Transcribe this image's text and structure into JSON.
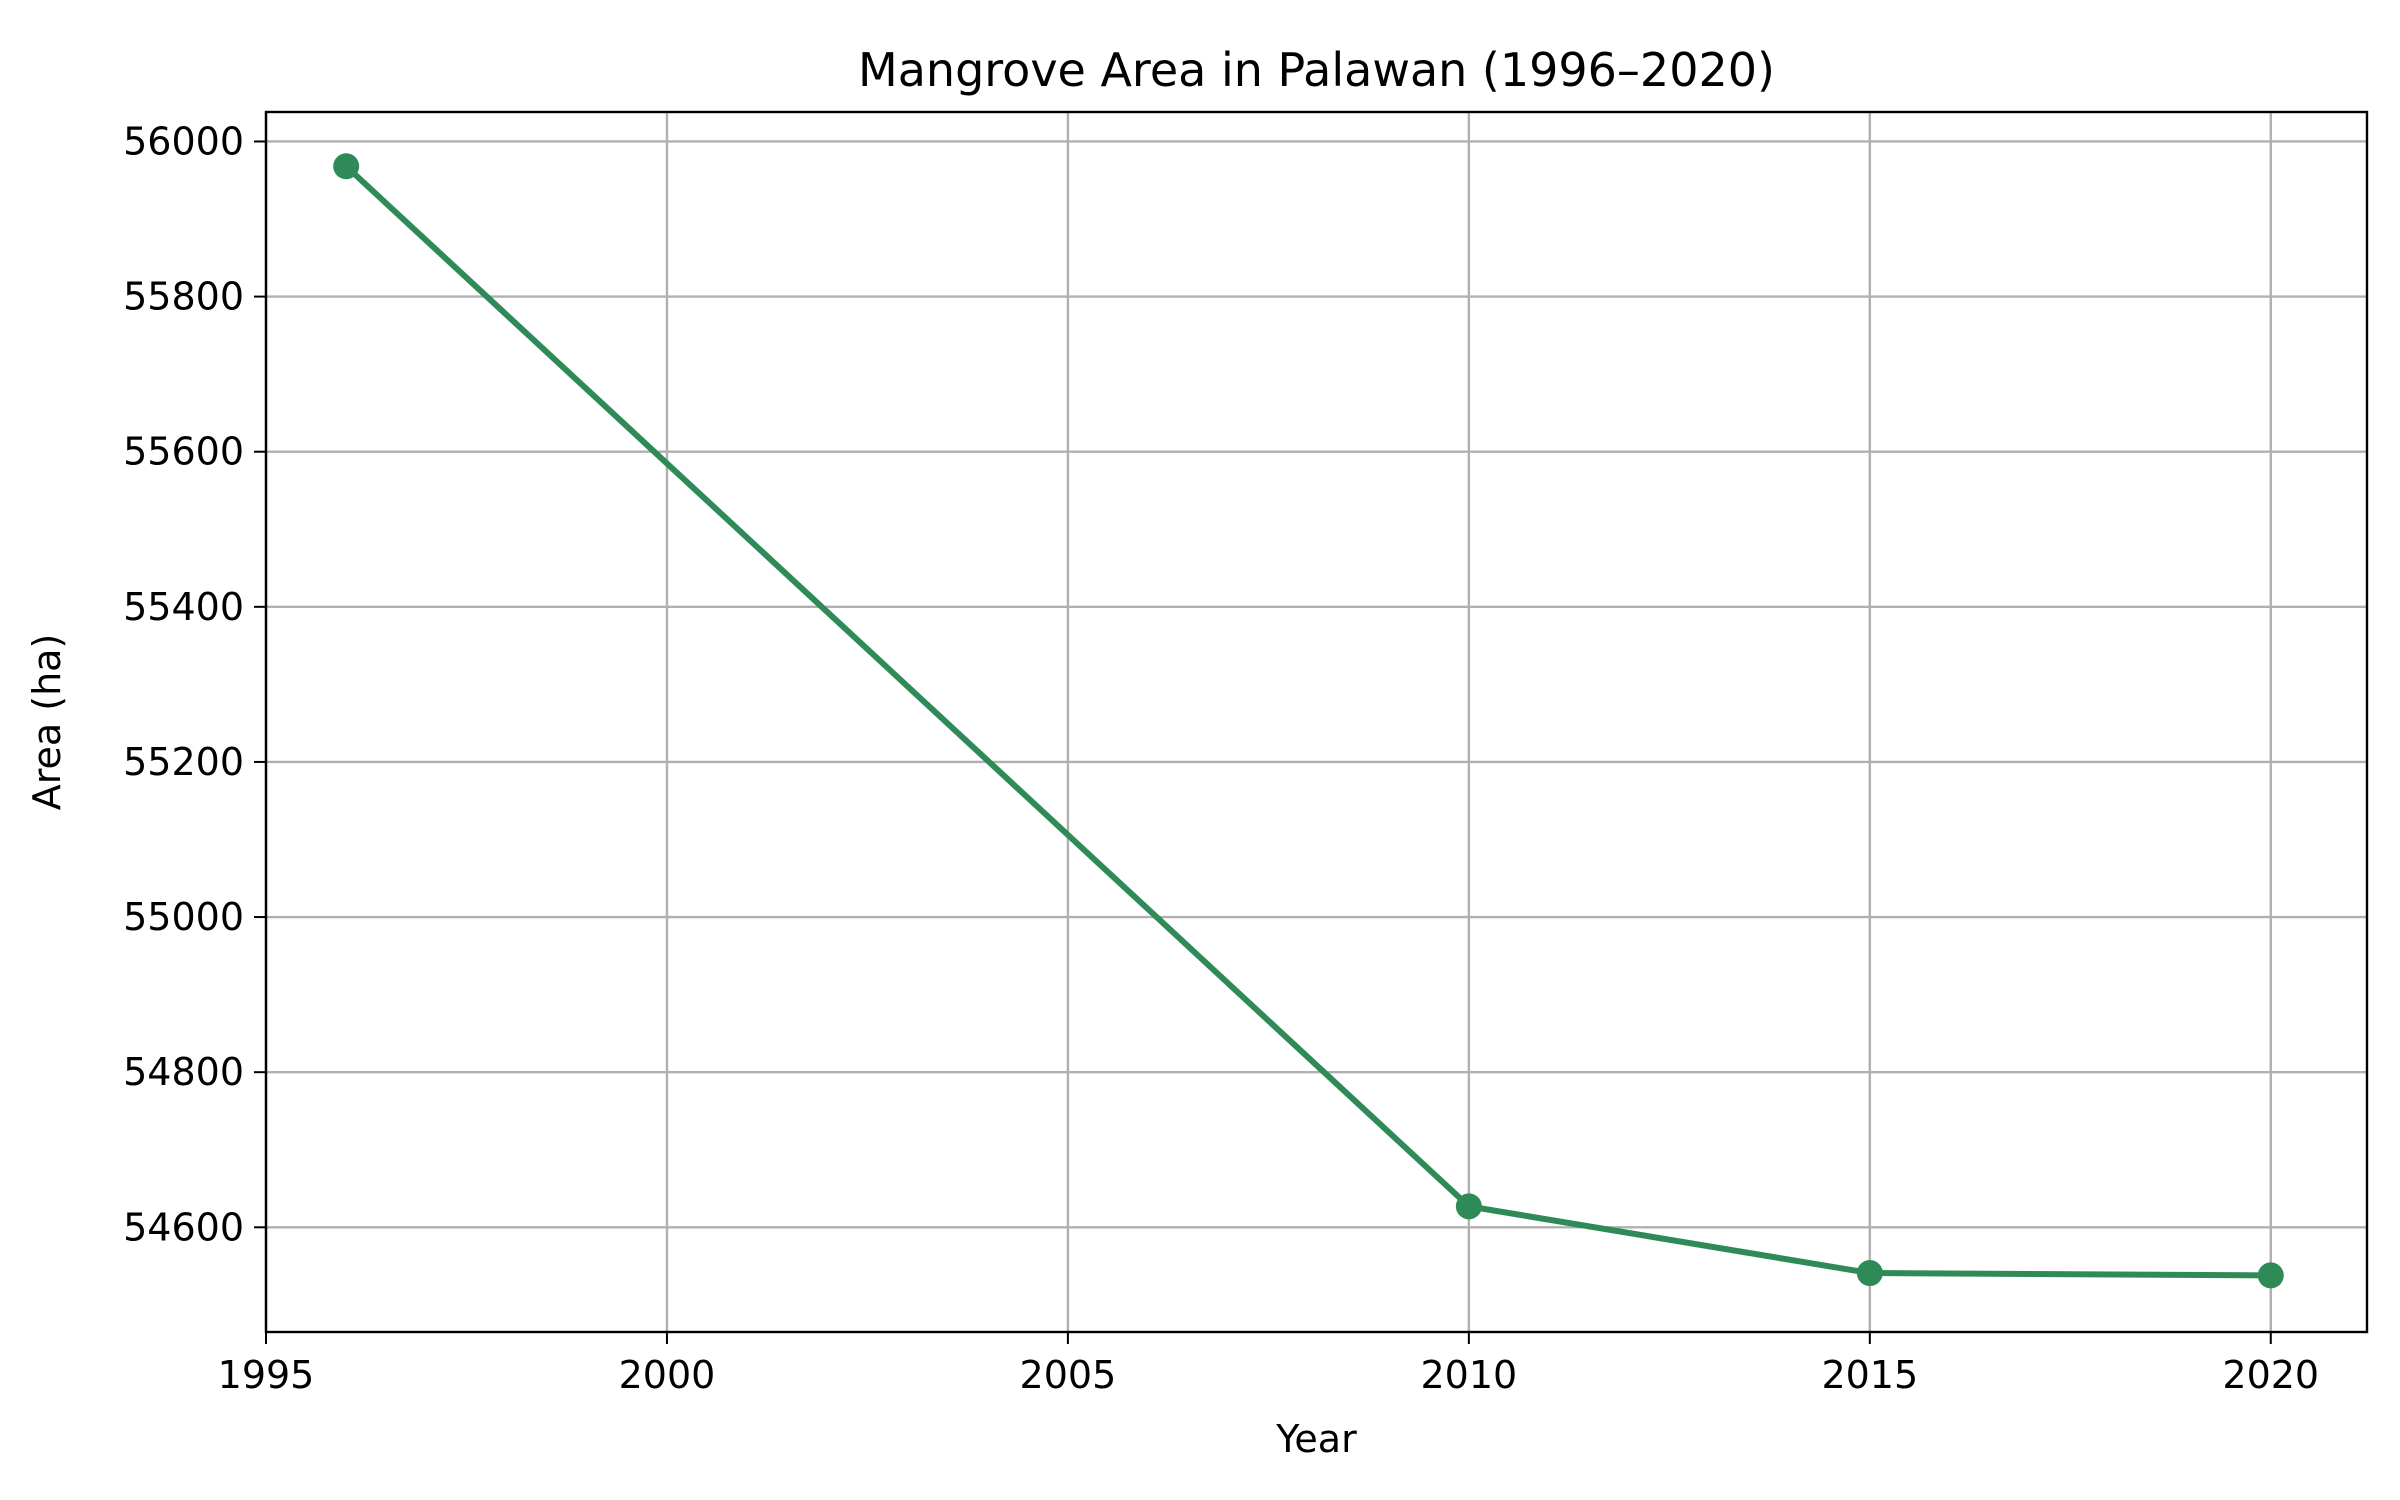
{
  "chart_data": {
    "type": "line",
    "title": "Mangrove Area in Palawan (1996–2020)",
    "xlabel": "Year",
    "ylabel": "Area (ha)",
    "x": [
      1996,
      2010,
      2015,
      2020
    ],
    "series": [
      {
        "values": [
          55968,
          54627,
          54541,
          54538
        ]
      }
    ],
    "xlim": [
      1995,
      2021.2
    ],
    "ylim": [
      54465,
      56038
    ],
    "xticks": [
      1995,
      2000,
      2005,
      2010,
      2015,
      2020
    ],
    "yticks": [
      54600,
      54800,
      55000,
      55200,
      55400,
      55600,
      55800,
      56000
    ],
    "grid": true,
    "line_color": "#2e8b57",
    "marker": "circle"
  }
}
